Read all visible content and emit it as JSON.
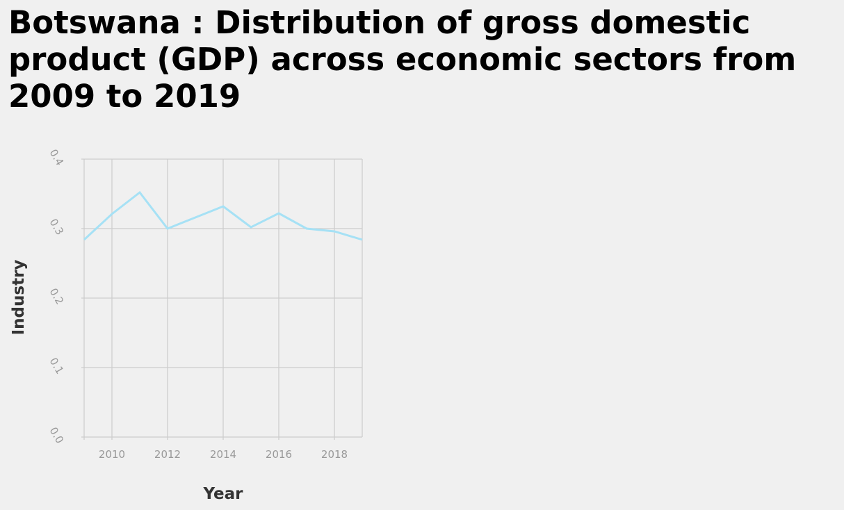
{
  "title": "Botswana : Distribution of gross domestic product (GDP) across economic sectors from 2009 to 2019",
  "chart_data": {
    "type": "line",
    "title": "Botswana : Distribution of gross domestic product (GDP) across economic sectors from 2009 to 2019",
    "xlabel": "Year",
    "ylabel": "Industry",
    "xlim": [
      2009,
      2019
    ],
    "ylim": [
      0,
      0.4
    ],
    "x_ticks": [
      2010,
      2012,
      2014,
      2016,
      2018
    ],
    "y_ticks": [
      "0.0",
      "0.1",
      "0.2",
      "0.3",
      "0.4"
    ],
    "grid": true,
    "line_color": "#a6e1f5",
    "series": [
      {
        "x": [
          2009,
          2010,
          2011,
          2012,
          2013,
          2014,
          2015,
          2016,
          2017,
          2018,
          2019
        ],
        "values": [
          0.284,
          0.321,
          0.352,
          0.3,
          0.316,
          0.332,
          0.302,
          0.322,
          0.3,
          0.296,
          0.284
        ]
      }
    ]
  }
}
